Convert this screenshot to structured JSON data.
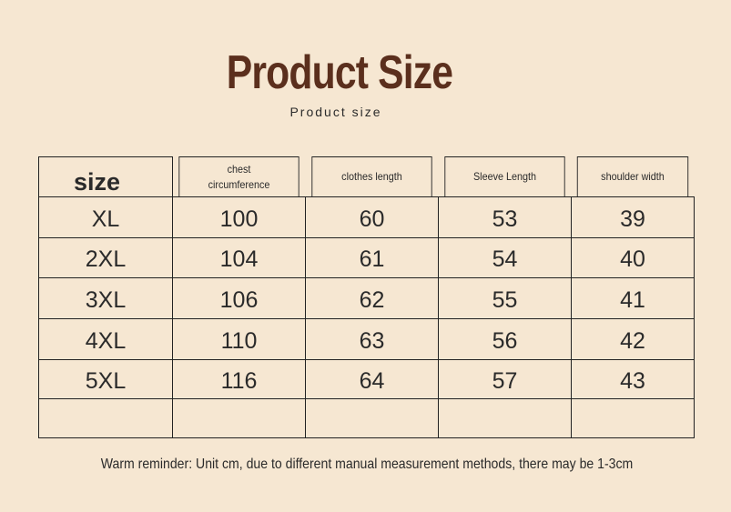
{
  "header": {
    "title": "Product Size",
    "subtitle": "Product size"
  },
  "table": {
    "columns": [
      "size",
      "chest circumference",
      "clothes length",
      "Sleeve Length",
      "shoulder width"
    ],
    "rows": [
      [
        "XL",
        100,
        60,
        53,
        39
      ],
      [
        "2XL",
        104,
        61,
        54,
        40
      ],
      [
        "3XL",
        106,
        62,
        55,
        41
      ],
      [
        "4XL",
        110,
        63,
        56,
        42
      ],
      [
        "5XL",
        116,
        64,
        57,
        43
      ]
    ]
  },
  "footer": {
    "note": "Warm reminder: Unit cm, due to different manual measurement methods, there may be 1-3cm"
  }
}
